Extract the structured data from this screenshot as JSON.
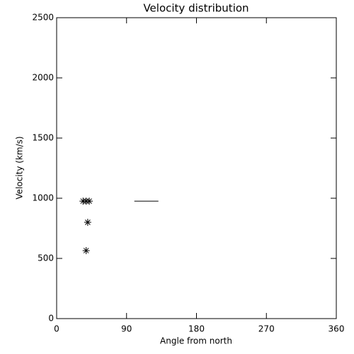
{
  "chart_data": {
    "type": "scatter",
    "title": "Velocity distribution",
    "x_label": "Angle from north",
    "y_label": "Velocity (km/s)",
    "points": {
      "x": [
        34,
        38,
        42,
        40,
        38
      ],
      "y": [
        976,
        976,
        976,
        800,
        565
      ]
    },
    "segment": {
      "x": [
        100,
        131
      ],
      "y": [
        976,
        976
      ]
    },
    "color": "#000000",
    "xlim": [
      0,
      360
    ],
    "xticks": [
      0,
      90,
      180,
      270,
      360
    ],
    "ylim": [
      0,
      2500
    ],
    "yticks": [
      0,
      500,
      1000,
      1500,
      2000,
      2500
    ],
    "grid": false
  }
}
